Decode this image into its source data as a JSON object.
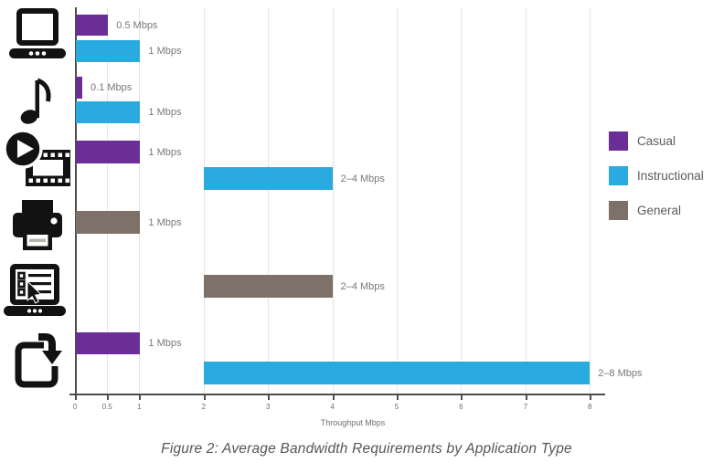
{
  "figure": {
    "caption": "Figure 2: Average Bandwidth Requirements by Application Type"
  },
  "chart_data": {
    "type": "bar",
    "orientation": "horizontal",
    "title": "",
    "xlabel": "Throughput Mbps",
    "ylabel": "",
    "xlim": [
      0,
      8.2
    ],
    "grid": true,
    "x_ticks": [
      {
        "value": 0,
        "label": "0"
      },
      {
        "value": 0.5,
        "label": "0.5"
      },
      {
        "value": 1,
        "label": "1"
      },
      {
        "value": 2,
        "label": "2"
      },
      {
        "value": 3,
        "label": "3"
      },
      {
        "value": 4,
        "label": "4"
      },
      {
        "value": 5,
        "label": "5"
      },
      {
        "value": 6,
        "label": "6"
      },
      {
        "value": 7,
        "label": "7"
      },
      {
        "value": 8,
        "label": "8"
      }
    ],
    "legend_position": "right",
    "legend": [
      {
        "label": "Casual",
        "color": "#6b2e97"
      },
      {
        "label": "Instructional",
        "color": "#29abe2"
      },
      {
        "label": "General",
        "color": "#7d7169"
      }
    ],
    "categories": [
      {
        "icon": "laptop-icon"
      },
      {
        "icon": "music-note-icon"
      },
      {
        "icon": "video-film-icon"
      },
      {
        "icon": "printer-icon"
      },
      {
        "icon": "survey-checklist-icon"
      },
      {
        "icon": "download-icon"
      }
    ],
    "bars": [
      {
        "category": 0,
        "series": "Casual",
        "start": 0,
        "end": 0.5,
        "label": "0.5 Mbps"
      },
      {
        "category": 0,
        "series": "Instructional",
        "start": 0,
        "end": 1,
        "label": "1 Mbps"
      },
      {
        "category": 1,
        "series": "Casual",
        "start": 0,
        "end": 0.1,
        "label": "0.1 Mbps"
      },
      {
        "category": 1,
        "series": "Instructional",
        "start": 0,
        "end": 1,
        "label": "1 Mbps"
      },
      {
        "category": 2,
        "series": "Casual",
        "start": 0,
        "end": 1,
        "label": "1 Mbps"
      },
      {
        "category": 2,
        "series": "Instructional",
        "start": 2,
        "end": 4,
        "label": "2–4 Mbps"
      },
      {
        "category": 3,
        "series": "General",
        "start": 0,
        "end": 1,
        "label": "1 Mbps"
      },
      {
        "category": 4,
        "series": "General",
        "start": 2,
        "end": 4,
        "label": "2–4 Mbps"
      },
      {
        "category": 5,
        "series": "Casual",
        "start": 0,
        "end": 1,
        "label": "1 Mbps"
      },
      {
        "category": 5,
        "series": "Instructional",
        "start": 2,
        "end": 8,
        "label": "2–8 Mbps"
      }
    ],
    "style": {
      "axis_color": "#4d4d4f",
      "grid_color": "#e4e4e6",
      "label_color": "#77787b"
    }
  }
}
